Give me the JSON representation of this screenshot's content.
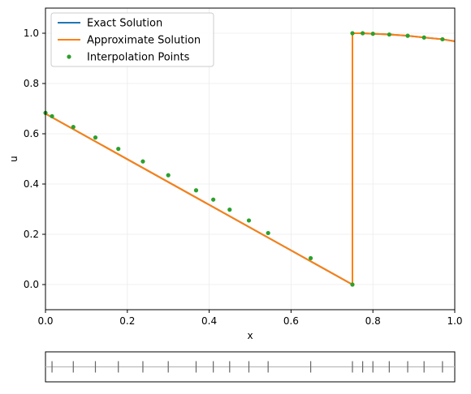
{
  "chart_data": {
    "type": "line",
    "title": "",
    "xlabel": "x",
    "ylabel": "u",
    "xlim": [
      0.0,
      1.0
    ],
    "ylim": [
      -0.1,
      1.1
    ],
    "xticks": [
      "0.0",
      "0.2",
      "0.4",
      "0.6",
      "0.8",
      "1.0"
    ],
    "yticks": [
      "0.0",
      "0.2",
      "0.4",
      "0.6",
      "0.8",
      "1.0"
    ],
    "grid": true,
    "legend_position": "top-left",
    "series": [
      {
        "name": "Exact Solution",
        "kind": "line",
        "color": "#1f77b4",
        "x": [
          0.0,
          0.75,
          0.75,
          0.775,
          0.8,
          0.84,
          0.885,
          0.925,
          0.97,
          1.0
        ],
        "y": [
          0.68,
          0.0,
          1.0,
          1.0,
          0.998,
          0.995,
          0.99,
          0.983,
          0.976,
          0.968
        ]
      },
      {
        "name": "Approximate Solution",
        "kind": "line",
        "color": "#ff7f0e",
        "x": [
          0.0,
          0.75,
          0.75,
          0.775,
          0.8,
          0.84,
          0.885,
          0.925,
          0.97,
          1.0
        ],
        "y": [
          0.68,
          0.0,
          1.0,
          1.0,
          0.998,
          0.995,
          0.99,
          0.983,
          0.976,
          0.968
        ]
      },
      {
        "name": "Interpolation Points",
        "kind": "scatter",
        "color": "#2ca02c",
        "x": [
          0.0,
          0.016,
          0.068,
          0.122,
          0.178,
          0.238,
          0.3,
          0.368,
          0.41,
          0.45,
          0.497,
          0.544,
          0.648,
          0.75,
          0.75,
          0.775,
          0.8,
          0.84,
          0.885,
          0.925,
          0.97
        ],
        "y": [
          0.683,
          0.67,
          0.627,
          0.585,
          0.54,
          0.49,
          0.435,
          0.375,
          0.338,
          0.298,
          0.255,
          0.205,
          0.105,
          0.0,
          1.0,
          1.0,
          0.998,
          0.995,
          0.99,
          0.983,
          0.976
        ]
      }
    ],
    "point_strip": {
      "x": [
        0.016,
        0.068,
        0.122,
        0.178,
        0.238,
        0.3,
        0.368,
        0.41,
        0.45,
        0.497,
        0.544,
        0.648,
        0.75,
        0.775,
        0.8,
        0.84,
        0.885,
        0.925,
        0.97
      ]
    }
  }
}
